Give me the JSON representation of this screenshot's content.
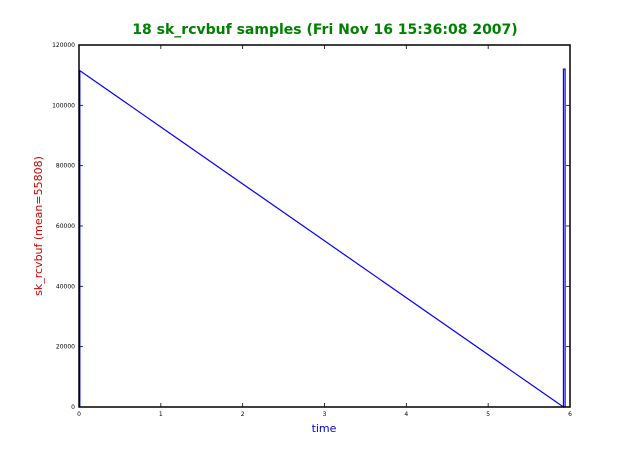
{
  "chart_data": {
    "type": "line",
    "title": "18 sk_rcvbuf samples (Fri Nov 16 15:36:08 2007)",
    "xlabel": "time",
    "ylabel": "sk_rcvbuf (mean=55808)",
    "xlim": [
      0,
      6
    ],
    "ylim": [
      0,
      120000
    ],
    "x_ticks": [
      "0",
      "1",
      "2",
      "3",
      "4",
      "5",
      "6"
    ],
    "y_ticks": [
      "0",
      "20000",
      "40000",
      "60000",
      "80000",
      "100000",
      "120000"
    ],
    "grid": false,
    "series": [
      {
        "color": "#0000ff",
        "points": [
          [
            0.01,
            0
          ],
          [
            0.01,
            111500
          ],
          [
            5.92,
            0
          ],
          [
            5.92,
            112000
          ],
          [
            5.94,
            112000
          ],
          [
            5.94,
            0
          ]
        ]
      }
    ]
  },
  "colors": {
    "title": "#008000",
    "xlabel": "#0000cc",
    "ylabel": "#cc0000",
    "line": "#0000ff",
    "axes": "#000000"
  }
}
